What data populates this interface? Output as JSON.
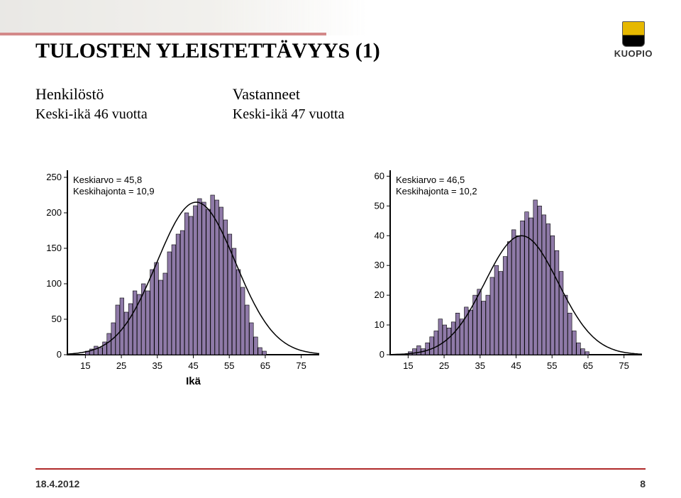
{
  "logo": {
    "city": "KUOPIO"
  },
  "title": "TULOSTEN YLEISTETTÄVYYS (1)",
  "columns": {
    "left": {
      "heading": "Henkilöstö",
      "sub": "Keski-ikä 46 vuotta"
    },
    "right": {
      "heading": "Vastanneet",
      "sub": "Keski-ikä 47 vuotta"
    }
  },
  "footer": {
    "date": "18.4.2012",
    "page": "8"
  },
  "chart_left": {
    "type": "histogram",
    "stat_lines": [
      "Keskiarvo = 45,8",
      "Keskihajonta = 10,9"
    ],
    "stat_fontsize": 13,
    "xlabel": "Ikä",
    "xlabel_fontsize": 15,
    "tick_fontsize": 13,
    "bar_color": "#8f7aa8",
    "bar_stroke": "#000000",
    "curve_stroke": "#000000",
    "curve_width": 1.5,
    "axis_color": "#000000",
    "background": "#ffffff",
    "x_ticks": [
      15,
      25,
      35,
      45,
      55,
      65,
      75
    ],
    "xlim": [
      10,
      80
    ],
    "y_ticks": [
      0,
      50,
      100,
      150,
      200,
      250
    ],
    "ylim": [
      0,
      260
    ],
    "bin_start": 15,
    "bin_width": 1.2,
    "bars": [
      5,
      8,
      12,
      10,
      18,
      30,
      45,
      70,
      80,
      60,
      72,
      90,
      85,
      100,
      90,
      120,
      130,
      105,
      115,
      145,
      155,
      170,
      175,
      200,
      195,
      210,
      220,
      215,
      205,
      225,
      218,
      208,
      190,
      170,
      150,
      120,
      95,
      70,
      45,
      25,
      10,
      5
    ],
    "curve": {
      "mean": 45.8,
      "sd": 10.9,
      "peak": 215
    }
  },
  "chart_right": {
    "type": "histogram",
    "stat_lines": [
      "Keskiarvo = 46,5",
      "Keskihajonta = 10,2"
    ],
    "stat_fontsize": 13,
    "xlabel": "",
    "xlabel_fontsize": 15,
    "tick_fontsize": 13,
    "bar_color": "#8f7aa8",
    "bar_stroke": "#000000",
    "curve_stroke": "#000000",
    "curve_width": 1.5,
    "axis_color": "#000000",
    "background": "#ffffff",
    "x_ticks": [
      15,
      25,
      35,
      45,
      55,
      65,
      75
    ],
    "xlim": [
      10,
      80
    ],
    "y_ticks": [
      0,
      10,
      20,
      30,
      40,
      50,
      60
    ],
    "ylim": [
      0,
      62
    ],
    "bin_start": 15,
    "bin_width": 1.2,
    "bars": [
      1,
      2,
      3,
      2,
      4,
      6,
      8,
      12,
      10,
      9,
      11,
      14,
      12,
      16,
      15,
      20,
      22,
      18,
      20,
      26,
      30,
      28,
      33,
      38,
      42,
      40,
      45,
      48,
      46,
      52,
      50,
      47,
      44,
      40,
      35,
      28,
      20,
      14,
      8,
      4,
      2,
      1
    ],
    "curve": {
      "mean": 46.5,
      "sd": 10.2,
      "peak": 40
    }
  }
}
